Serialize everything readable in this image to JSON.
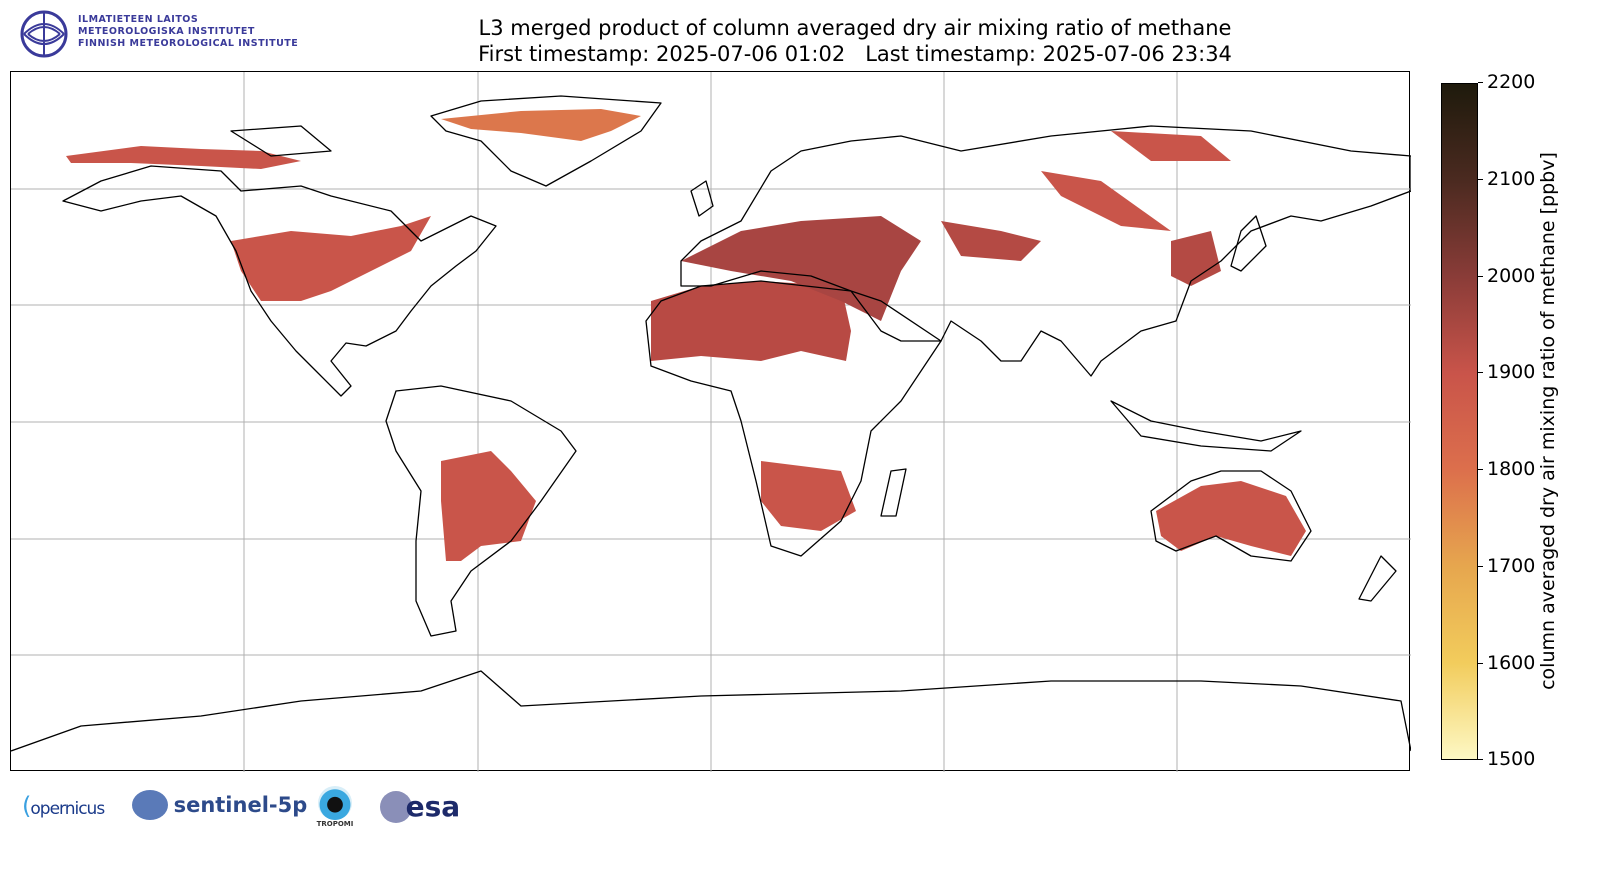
{
  "header": {
    "title_line1": "L3 merged product of column averaged dry air mixing ratio of methane",
    "title_line2": "First timestamp: 2025-07-06 01:02   Last timestamp: 2025-07-06 23:34"
  },
  "fmi_logo": {
    "line1": "ILMATIETEEN LAITOS",
    "line2": "METEOROLOGISKA INSTITUTET",
    "line3": "FINNISH METEOROLOGICAL INSTITUTE"
  },
  "colorbar": {
    "label": "column averaged dry air mixing ratio of methane [ppbv]",
    "ticks": [
      "2200",
      "2100",
      "2000",
      "1900",
      "1800",
      "1700",
      "1600",
      "1500"
    ],
    "range": [
      1500,
      2200
    ],
    "colors": [
      "#fdf8c4",
      "#f2cc5c",
      "#e6a64e",
      "#dc6f4c",
      "#c9544a",
      "#8a3c38",
      "#4b2a20",
      "#1e1a0c"
    ]
  },
  "footer_logos": {
    "copernicus": "opernicus",
    "sentinel": "sentinel-5p",
    "tropomi": "TROPOMI",
    "esa": "esa"
  }
}
